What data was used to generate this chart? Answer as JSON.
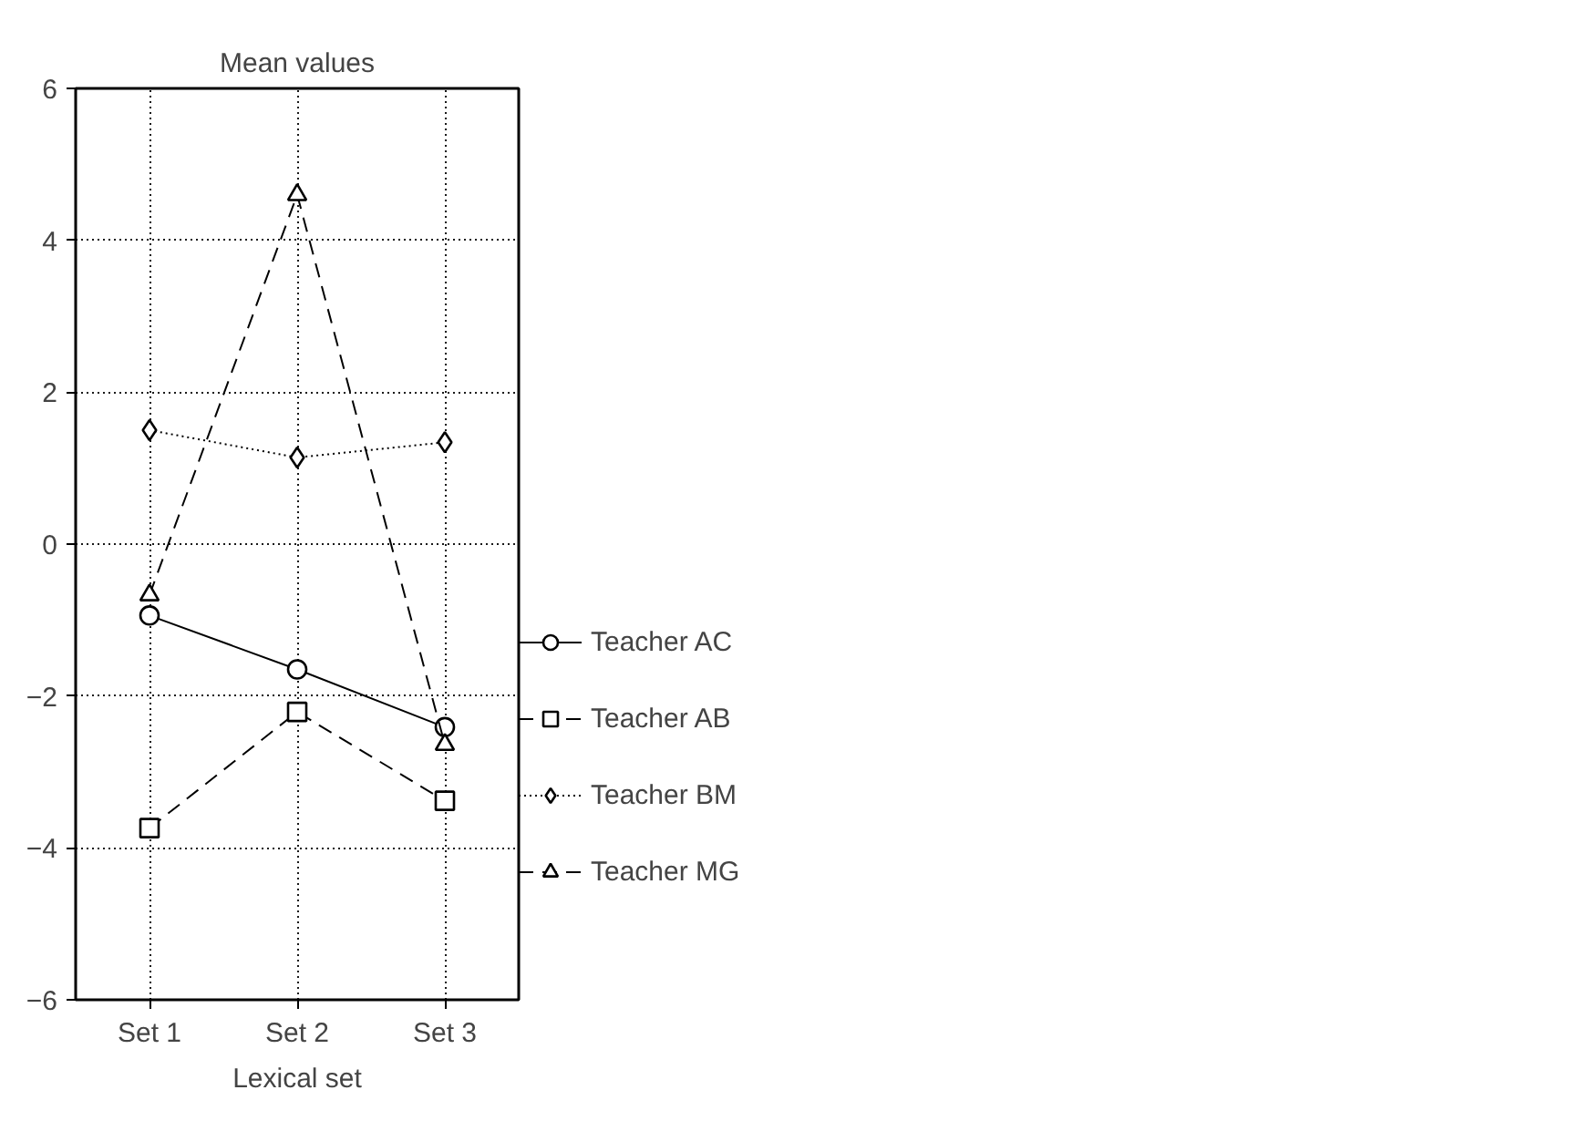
{
  "chart_data": {
    "type": "line",
    "title": "Mean values",
    "xlabel": "Lexical set",
    "categories": [
      "Set 1",
      "Set 2",
      "Set 3"
    ],
    "ylim": [
      -6,
      6
    ],
    "yticks": [
      -6,
      -4,
      -2,
      0,
      2,
      4,
      6
    ],
    "grid": true,
    "legend": "right",
    "series": [
      {
        "name": "Teacher AC",
        "color": "#000000",
        "marker": "circle",
        "line_style": "solid",
        "values": [
          -0.94,
          -1.65,
          -2.41
        ]
      },
      {
        "name": "Teacher AB",
        "color": "#000000",
        "marker": "square",
        "line_style": "dashed",
        "values": [
          -3.74,
          -2.21,
          -3.38
        ]
      },
      {
        "name": "Teacher BM",
        "color": "#000000",
        "marker": "diamond",
        "line_style": "dotted",
        "values": [
          1.5,
          1.14,
          1.34
        ]
      },
      {
        "name": "Teacher MG",
        "color": "#000000",
        "marker": "triangle",
        "line_style": "dashed",
        "values": [
          -0.67,
          4.6,
          -2.64
        ]
      }
    ]
  }
}
